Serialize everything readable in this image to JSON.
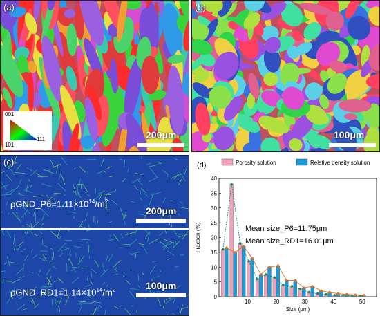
{
  "panels": {
    "a": {
      "label": "(a)",
      "scale": "200μm"
    },
    "b": {
      "label": "(b)",
      "scale": "100μm"
    },
    "c": {
      "label": "(c)",
      "upper": {
        "prefix": "ρGND_P6=1.11×10",
        "exp": "14",
        "suffix": "/m",
        "exp2": "2",
        "scale": "200μm"
      },
      "lower": {
        "prefix": "ρGND_RD1=1.14×10",
        "exp": "14",
        "suffix": "/m",
        "exp2": "2",
        "scale": "100μm"
      }
    },
    "d": {
      "label": "(d)"
    }
  },
  "ipf_legend": {
    "top": "001",
    "bottom_left": "101",
    "bottom_right": "111"
  },
  "chart_data": {
    "type": "bar",
    "xlabel": "Size (μm)",
    "ylabel": "Fraction (%)",
    "xlim": [
      0,
      55
    ],
    "ylim": [
      0,
      40
    ],
    "xticks": [
      10,
      20,
      30,
      40,
      50
    ],
    "yticks": [
      0,
      5,
      10,
      15,
      20,
      25,
      30,
      35,
      40
    ],
    "series": [
      {
        "name": "Porosity solution",
        "color": "#f4a0bb",
        "x": [
          2,
          5,
          8,
          11,
          14,
          17,
          20,
          23,
          26,
          29,
          32,
          35,
          38,
          41,
          44,
          47,
          50
        ],
        "values": [
          16,
          38,
          18,
          12,
          6,
          7.5,
          6.5,
          4,
          3.5,
          2.5,
          1.5,
          1,
          0.8,
          0.5,
          0.5,
          0.3,
          0.3
        ]
      },
      {
        "name": "Relative density solution",
        "color": "#1a9ad6",
        "x": [
          2,
          5,
          8,
          11,
          14,
          17,
          20,
          23,
          26,
          29,
          32,
          35,
          38,
          41,
          44,
          47,
          50
        ],
        "values": [
          16.5,
          15,
          17,
          13,
          7.5,
          10,
          10.5,
          5.5,
          5.5,
          3,
          3.5,
          2,
          1.5,
          1,
          0.8,
          0.6,
          0.5
        ]
      }
    ],
    "annotations": [
      "Mean size_P6=11.75μm",
      "Mean size_RD1=16.01μm"
    ]
  }
}
